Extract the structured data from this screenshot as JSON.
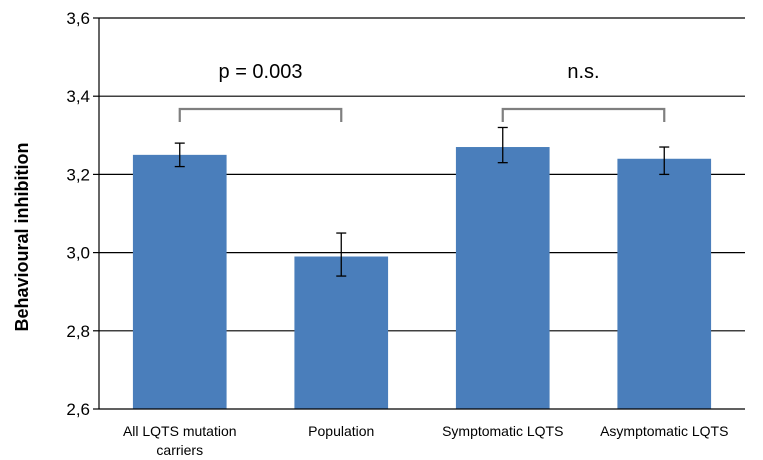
{
  "chart_data": {
    "type": "bar",
    "categories": [
      [
        "All LQTS mutation",
        "carriers"
      ],
      [
        "Population"
      ],
      [
        "Symptomatic LQTS"
      ],
      [
        "Asymptomatic LQTS"
      ]
    ],
    "values": [
      3.25,
      2.99,
      3.27,
      3.24
    ],
    "error_low": [
      3.22,
      2.94,
      3.23,
      3.2
    ],
    "error_high": [
      3.28,
      3.05,
      3.32,
      3.27
    ],
    "ylabel": "Behavioural inhibition",
    "ylim": [
      2.6,
      3.6
    ],
    "yticks": [
      2.6,
      2.8,
      3.0,
      3.2,
      3.4,
      3.6
    ],
    "ytick_labels": [
      "2,6",
      "2,8",
      "3,0",
      "3,2",
      "3,4",
      "3,6"
    ],
    "grid": true,
    "bar_color": "#4a7ebb",
    "annotations": [
      {
        "text": "p = 0.003",
        "from": 0,
        "to": 1
      },
      {
        "text": "n.s.",
        "from": 2,
        "to": 3
      }
    ]
  }
}
